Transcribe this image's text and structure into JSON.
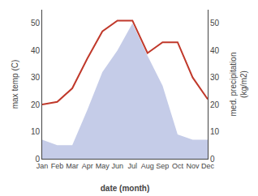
{
  "chart_data": {
    "type": "line",
    "xlabel": "date (month)",
    "ylabel": "max temp (C)",
    "y2label": "med. precipitation\n(kg/m2)",
    "categories": [
      "Jan",
      "Feb",
      "Mar",
      "Apr",
      "May",
      "Jun",
      "Jul",
      "Aug",
      "Sep",
      "Oct",
      "Nov",
      "Dec"
    ],
    "series": [
      {
        "type": "area",
        "color": "#c5cce8",
        "values": [
          7,
          5,
          5,
          18,
          32,
          40,
          50,
          38,
          27,
          9,
          7,
          7
        ]
      },
      {
        "type": "line",
        "color": "#c0392b",
        "values": [
          20,
          21,
          26,
          37,
          47,
          51,
          51,
          39,
          43,
          43,
          30,
          22
        ]
      }
    ],
    "ylim": [
      0,
      55
    ],
    "yticks": [
      0,
      10,
      20,
      30,
      40,
      50
    ],
    "y2lim": [
      0,
      55
    ],
    "y2ticks": [
      0,
      10,
      20,
      30,
      40,
      50
    ],
    "grid": false
  }
}
